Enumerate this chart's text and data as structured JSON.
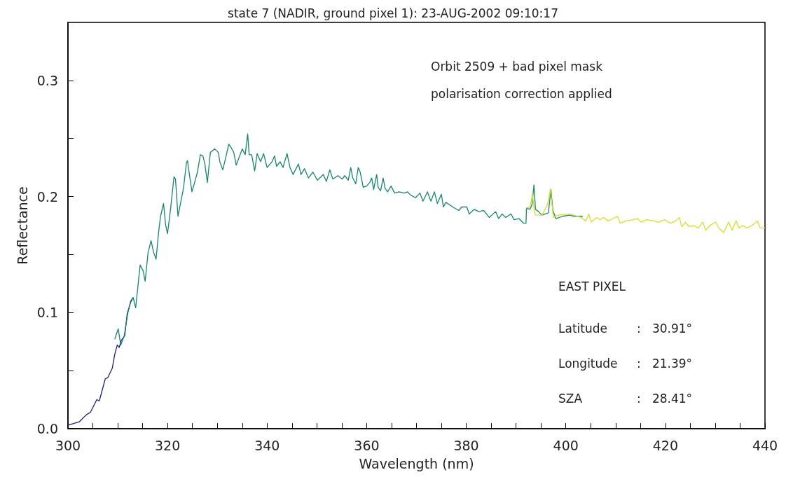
{
  "chart_data": {
    "type": "line",
    "title": "state 7 (NADIR, ground pixel 1): 23-AUG-2002 09:10:17",
    "xlabel": "Wavelength (nm)",
    "ylabel": "Reflectance",
    "xlim": [
      300,
      440
    ],
    "ylim": [
      0,
      0.35
    ],
    "xticks": [
      300,
      {
        "value": 305,
        "label": null
      },
      {
        "value": 310,
        "label": null
      },
      {
        "value": 315,
        "label": null
      },
      320,
      {
        "value": 325,
        "label": null
      },
      {
        "value": 330,
        "label": null
      },
      {
        "value": 335,
        "label": null
      },
      340,
      {
        "value": 345,
        "label": null
      },
      {
        "value": 350,
        "label": null
      },
      {
        "value": 355,
        "label": null
      },
      360,
      {
        "value": 365,
        "label": null
      },
      {
        "value": 370,
        "label": null
      },
      {
        "value": 375,
        "label": null
      },
      380,
      {
        "value": 385,
        "label": null
      },
      {
        "value": 390,
        "label": null
      },
      {
        "value": 395,
        "label": null
      },
      400,
      {
        "value": 405,
        "label": null
      },
      {
        "value": 410,
        "label": null
      },
      {
        "value": 415,
        "label": null
      },
      420,
      {
        "value": 425,
        "label": null
      },
      {
        "value": 430,
        "label": null
      },
      {
        "value": 435,
        "label": null
      },
      440
    ],
    "yticks": [
      {
        "value": 0,
        "label": "0.0"
      },
      {
        "value": 0.05,
        "label": null
      },
      {
        "value": 0.1,
        "label": "0.1"
      },
      {
        "value": 0.15,
        "label": null
      },
      {
        "value": 0.2,
        "label": "0.2"
      },
      {
        "value": 0.25,
        "label": null
      },
      {
        "value": 0.3,
        "label": "0.3"
      }
    ],
    "grid": false,
    "marker": "none",
    "line_style": "solid",
    "annotations": [
      "Orbit 2509 + bad pixel mask",
      "polarisation correction applied",
      "EAST PIXEL",
      "Latitude : 30.91°",
      "Longitude : 21.39°",
      "SZA : 28.41°"
    ],
    "series": [
      {
        "color": "#1a1aa0",
        "x": [
          300,
          302.3,
          303.7,
          304.5,
          305.8,
          306.3,
          307.5,
          308,
          308.9,
          309.4,
          309.9,
          310.3,
          310.7,
          311.4,
          311.9,
          312.6,
          313.1
        ],
        "values": [
          0.003,
          0.006,
          0.012,
          0.014,
          0.025,
          0.024,
          0.043,
          0.044,
          0.052,
          0.064,
          0.072,
          0.07,
          0.076,
          0.08,
          0.099,
          0.109,
          0.113
        ]
      },
      {
        "color": "#128a6a",
        "x": [
          309.4,
          309.7,
          310.1,
          310.6,
          311.3,
          312,
          312.6,
          313.1,
          313.6,
          314.5,
          315.1,
          315.5,
          316.1,
          316.7,
          317.2,
          317.7,
          318.2,
          318.6,
          319.2,
          319.6,
          320,
          320.6,
          321.3,
          321.6,
          322.1,
          322.6,
          323.2,
          323.8,
          324,
          324.3,
          324.9,
          325.5,
          326,
          326.6,
          327.1,
          327.5,
          328,
          328.6,
          329.5,
          330.2,
          330.5,
          331.1,
          331.6,
          332.3,
          332.8,
          333.3,
          333.8,
          334.4,
          335,
          335.6,
          336.1,
          336.4,
          336.9,
          337.5,
          338,
          338.7,
          339.3,
          340,
          341,
          341.5,
          341.9,
          342.6,
          343.2,
          344,
          344.6,
          345.2,
          346.3,
          346.8,
          347.5,
          348.3,
          349.2,
          350.1,
          351.3,
          351.9,
          352.6,
          353.2,
          354.2,
          355.1,
          355.6,
          356.3,
          356.8,
          357.2,
          357.8,
          358.3,
          358.7,
          359.3,
          360,
          360.6,
          361,
          361.4,
          362,
          362.3,
          362.8,
          363.3,
          363.7,
          364.2,
          364.9,
          365.6,
          366.5,
          367.5,
          368.2,
          368.9,
          369.8,
          370.7,
          371.3,
          372.2,
          372.9,
          373.6,
          374.2,
          375,
          375.4,
          375.9,
          377.3,
          378.5,
          379.1,
          380.1,
          380.6,
          381.6,
          382.5,
          383.5,
          384.6,
          385.9,
          386.5,
          387.2,
          387.9,
          389,
          389.6,
          390.6,
          391.5,
          392,
          392.1,
          392.8,
          393.2,
          393.6,
          393.9,
          394.5,
          395.2,
          395.9,
          396.5,
          397,
          397.4,
          398,
          399.4,
          400.7,
          401.7,
          403.4
        ],
        "values": [
          0.077,
          0.081,
          0.086,
          0.072,
          0.08,
          0.099,
          0.11,
          0.113,
          0.104,
          0.141,
          0.136,
          0.127,
          0.152,
          0.162,
          0.152,
          0.146,
          0.169,
          0.183,
          0.194,
          0.176,
          0.168,
          0.189,
          0.217,
          0.215,
          0.183,
          0.194,
          0.207,
          0.229,
          0.231,
          0.222,
          0.204,
          0.213,
          0.221,
          0.236,
          0.235,
          0.228,
          0.212,
          0.238,
          0.241,
          0.238,
          0.23,
          0.223,
          0.232,
          0.245,
          0.242,
          0.238,
          0.227,
          0.234,
          0.241,
          0.236,
          0.254,
          0.236,
          0.236,
          0.222,
          0.237,
          0.23,
          0.237,
          0.225,
          0.23,
          0.235,
          0.226,
          0.23,
          0.225,
          0.237,
          0.225,
          0.219,
          0.228,
          0.219,
          0.224,
          0.216,
          0.221,
          0.214,
          0.219,
          0.213,
          0.223,
          0.215,
          0.218,
          0.215,
          0.218,
          0.214,
          0.225,
          0.216,
          0.211,
          0.225,
          0.221,
          0.208,
          0.209,
          0.212,
          0.216,
          0.206,
          0.219,
          0.208,
          0.205,
          0.216,
          0.207,
          0.204,
          0.209,
          0.203,
          0.204,
          0.203,
          0.204,
          0.201,
          0.199,
          0.203,
          0.196,
          0.204,
          0.196,
          0.204,
          0.194,
          0.202,
          0.191,
          0.195,
          0.191,
          0.188,
          0.191,
          0.191,
          0.185,
          0.189,
          0.187,
          0.188,
          0.182,
          0.187,
          0.181,
          0.185,
          0.182,
          0.185,
          0.18,
          0.181,
          0.177,
          0.177,
          0.19,
          0.189,
          0.193,
          0.21,
          0.189,
          0.187,
          0.184,
          0.185,
          0.186,
          0.206,
          0.188,
          0.181,
          0.183,
          0.184,
          0.183,
          0.183
        ]
      },
      {
        "color": "#d8e020",
        "x": [
          392,
          392.8,
          393.3,
          393.7,
          393.9,
          395.2,
          396.3,
          396.9,
          397.5,
          398.4,
          400.8,
          403.1,
          404,
          404.6,
          405.1,
          406.2,
          406.9,
          407.6,
          408.5,
          410.4,
          410.9,
          412.1,
          413.5,
          414.4,
          415.1,
          416.3,
          417.7,
          418.6,
          419.9,
          421,
          422.1,
          422.8,
          423.3,
          424,
          424.7,
          425.7,
          426.6,
          427.5,
          428.1,
          428.9,
          430.1,
          430.7,
          431.7,
          432.7,
          433.4,
          434.2,
          434.8,
          435.5,
          436.4,
          437.4,
          438.5,
          439,
          440
        ],
        "values": [
          0.19,
          0.191,
          0.202,
          0.187,
          0.184,
          0.184,
          0.193,
          0.206,
          0.182,
          0.184,
          0.185,
          0.182,
          0.179,
          0.185,
          0.178,
          0.182,
          0.18,
          0.182,
          0.179,
          0.183,
          0.177,
          0.179,
          0.18,
          0.181,
          0.178,
          0.18,
          0.179,
          0.178,
          0.18,
          0.177,
          0.179,
          0.182,
          0.174,
          0.178,
          0.174,
          0.175,
          0.173,
          0.178,
          0.171,
          0.175,
          0.178,
          0.173,
          0.169,
          0.178,
          0.171,
          0.179,
          0.173,
          0.175,
          0.173,
          0.175,
          0.179,
          0.173,
          0.173
        ]
      }
    ]
  }
}
